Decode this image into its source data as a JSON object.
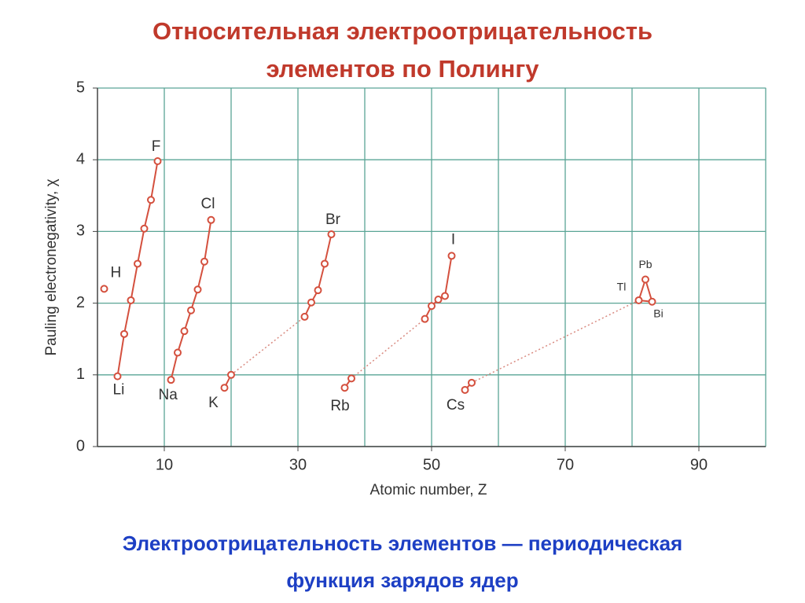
{
  "slide": {
    "title": [
      "Относительная электроотрицательность",
      "элементов по Полингу"
    ],
    "caption": [
      "Электроотрицательность элементов — периодическая",
      "функция зарядов ядер"
    ]
  },
  "chart_data": {
    "type": "line",
    "x_label": "Atomic number, Z",
    "y_label": "Pauling electronegativity, χ",
    "xlim": [
      0,
      100
    ],
    "ylim": [
      0,
      5
    ],
    "xticks": [
      10,
      30,
      50,
      70,
      90
    ],
    "xgrid": [
      10,
      20,
      30,
      40,
      50,
      60,
      70,
      80,
      90,
      100
    ],
    "yticks": [
      0,
      1,
      2,
      3,
      4,
      5
    ],
    "grid": true,
    "grid_color": "#5aa596",
    "color": "#d4503e",
    "dotted_color": "#d98a80",
    "series": [
      {
        "x": [
          1
        ],
        "values": [
          2.2
        ],
        "point_labels": [
          "H"
        ]
      },
      {
        "x": [
          3,
          4,
          5,
          6,
          7,
          8,
          9
        ],
        "values": [
          0.98,
          1.57,
          2.04,
          2.55,
          3.04,
          3.44,
          3.98
        ],
        "point_labels": [
          "Li",
          null,
          null,
          null,
          null,
          null,
          "F"
        ]
      },
      {
        "x": [
          11,
          12,
          13,
          14,
          15,
          16,
          17
        ],
        "values": [
          0.93,
          1.31,
          1.61,
          1.9,
          2.19,
          2.58,
          3.16
        ],
        "point_labels": [
          "Na",
          null,
          null,
          null,
          null,
          null,
          "Cl"
        ]
      },
      {
        "x": [
          19,
          20,
          31,
          32,
          33,
          34,
          35
        ],
        "values": [
          0.82,
          1.0,
          1.81,
          2.01,
          2.18,
          2.55,
          2.96
        ],
        "point_labels": [
          "K",
          null,
          null,
          null,
          null,
          null,
          "Br"
        ],
        "dotted_after": 1
      },
      {
        "x": [
          37,
          38,
          49,
          50,
          51,
          52,
          53
        ],
        "values": [
          0.82,
          0.95,
          1.78,
          1.96,
          2.05,
          2.1,
          2.66
        ],
        "point_labels": [
          "Rb",
          null,
          null,
          null,
          null,
          null,
          "I"
        ],
        "dotted_after": 1
      },
      {
        "x": [
          55,
          56,
          81,
          82,
          83
        ],
        "values": [
          0.79,
          0.89,
          2.04,
          2.33,
          2.02
        ],
        "point_labels": [
          "Cs",
          null,
          "Tl",
          "Pb",
          "Bi"
        ],
        "dotted_after": 1
      }
    ]
  }
}
